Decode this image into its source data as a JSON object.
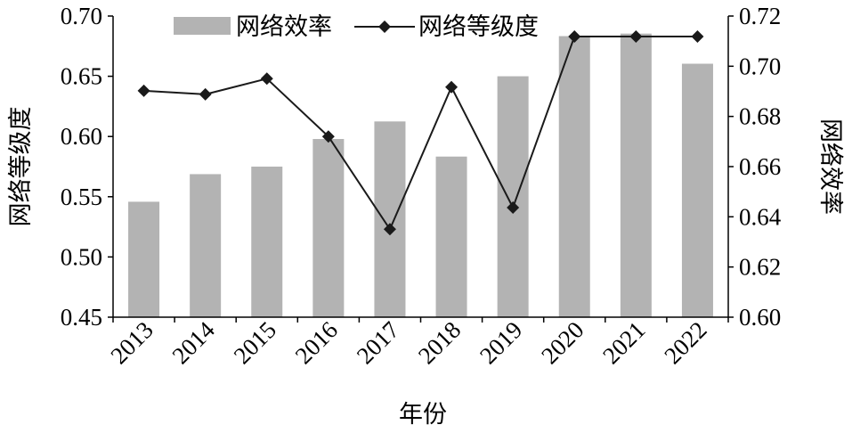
{
  "chart_data": {
    "type": "bar+line",
    "categories": [
      "2013",
      "2014",
      "2015",
      "2016",
      "2017",
      "2018",
      "2019",
      "2020",
      "2021",
      "2022"
    ],
    "xlabel": "年份",
    "y_left": {
      "label": "网络等级度",
      "lim": [
        0.45,
        0.7
      ],
      "ticks": [
        "0.45",
        "0.50",
        "0.55",
        "0.60",
        "0.65",
        "0.70"
      ]
    },
    "y_right": {
      "label": "网络效率",
      "lim": [
        0.6,
        0.72
      ],
      "ticks": [
        "0.60",
        "0.62",
        "0.64",
        "0.66",
        "0.68",
        "0.70",
        "0.72"
      ]
    },
    "series": [
      {
        "name": "网络效率",
        "kind": "bar",
        "axis": "right",
        "color": "#b3b3b3",
        "values": [
          0.646,
          0.657,
          0.66,
          0.671,
          0.678,
          0.664,
          0.696,
          0.712,
          0.713,
          0.701
        ]
      },
      {
        "name": "网络等级度",
        "kind": "line",
        "axis": "left",
        "color": "#1a1a1a",
        "marker": "diamond",
        "values": [
          0.638,
          0.635,
          0.648,
          0.6,
          0.523,
          0.641,
          0.541,
          0.683,
          0.683,
          0.683
        ]
      }
    ],
    "legend": "top-left",
    "grid": false
  }
}
